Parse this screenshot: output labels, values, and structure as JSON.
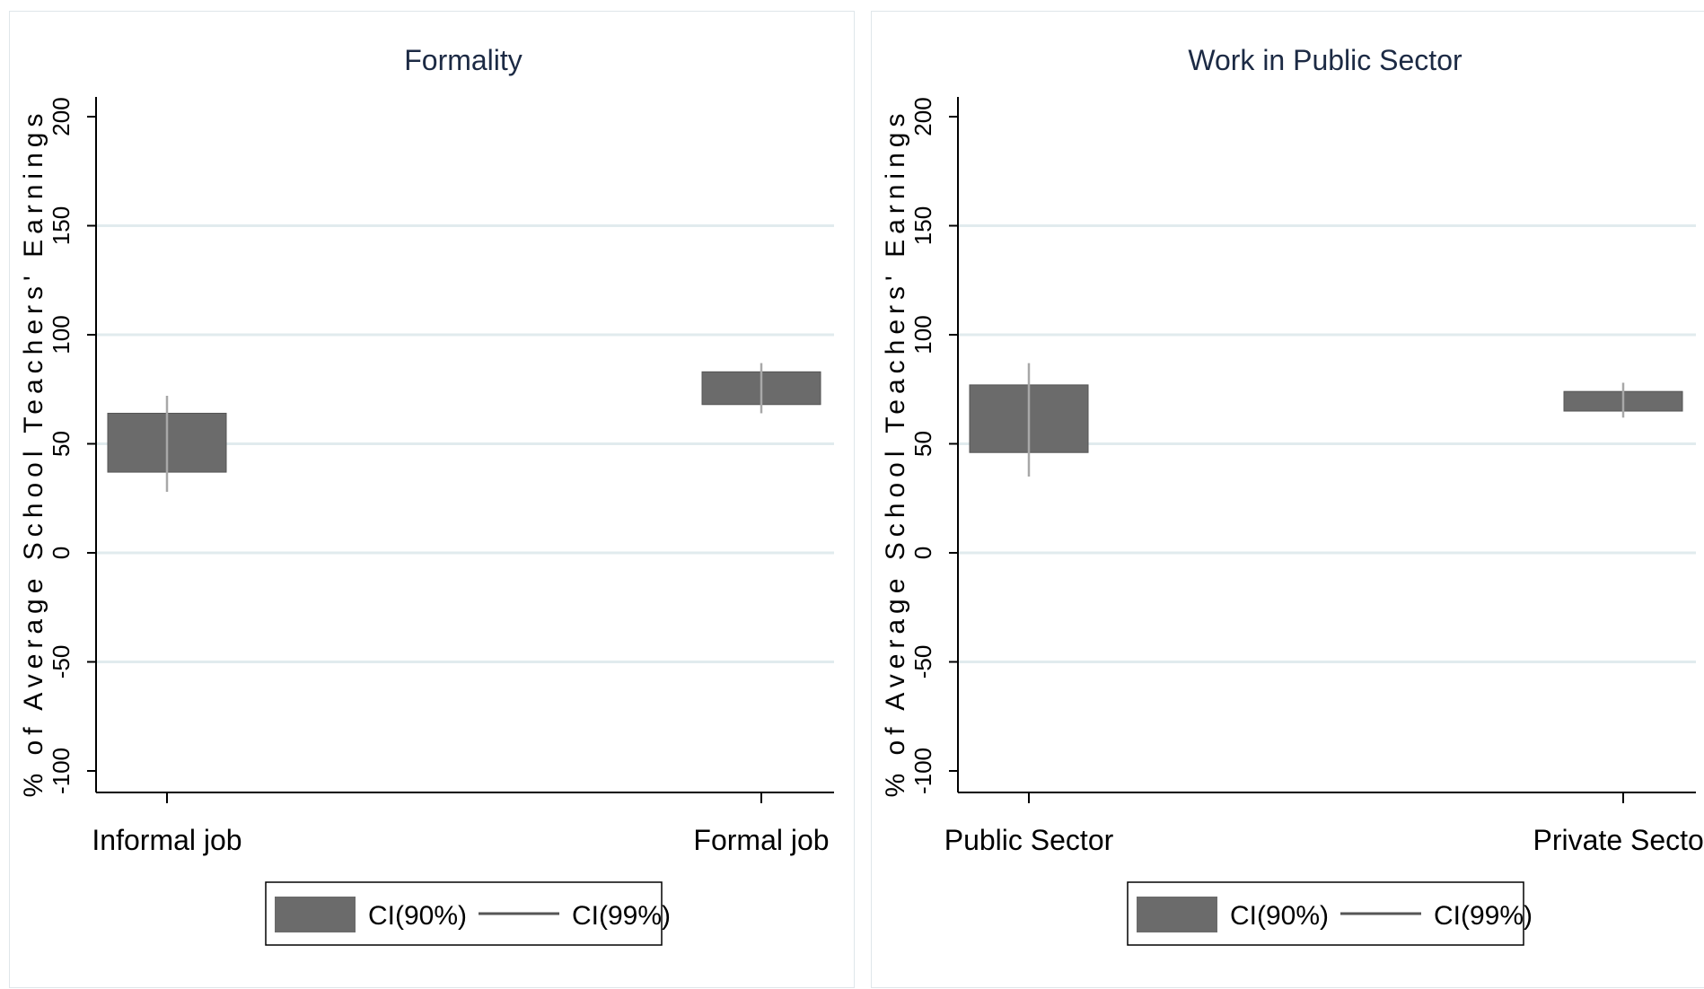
{
  "chart_data": [
    {
      "type": "bar",
      "title": "Formality",
      "ylabel": "% of Average School Teachers' Earnings",
      "ylim": [
        -100,
        200
      ],
      "yticks": [
        -100,
        -50,
        0,
        50,
        100,
        150,
        200
      ],
      "categories": [
        "Informal job",
        "Formal job"
      ],
      "series": [
        {
          "name": "CI(90%)",
          "low": [
            37,
            68
          ],
          "high": [
            64,
            83
          ]
        },
        {
          "name": "CI(99%)",
          "low": [
            28,
            64
          ],
          "high": [
            72,
            87
          ]
        }
      ],
      "grid": true,
      "legend": "bottom",
      "colors": {
        "ci90": "#6b6b6b",
        "ci99": "#a8a8a8",
        "grid": "#e1ebee",
        "title": "#1c2a44"
      }
    },
    {
      "type": "bar",
      "title": "Work in Public Sector",
      "ylabel": "% of Average School Teachers' Earnings",
      "ylim": [
        -100,
        200
      ],
      "yticks": [
        -100,
        -50,
        0,
        50,
        100,
        150,
        200
      ],
      "categories": [
        "Public Sector",
        "Private Sector"
      ],
      "series": [
        {
          "name": "CI(90%)",
          "low": [
            46,
            65
          ],
          "high": [
            77,
            74
          ]
        },
        {
          "name": "CI(99%)",
          "low": [
            35,
            62
          ],
          "high": [
            87,
            78
          ]
        }
      ],
      "grid": true,
      "legend": "bottom",
      "colors": {
        "ci90": "#6b6b6b",
        "ci99": "#a8a8a8",
        "grid": "#e1ebee",
        "title": "#1c2a44"
      }
    }
  ]
}
